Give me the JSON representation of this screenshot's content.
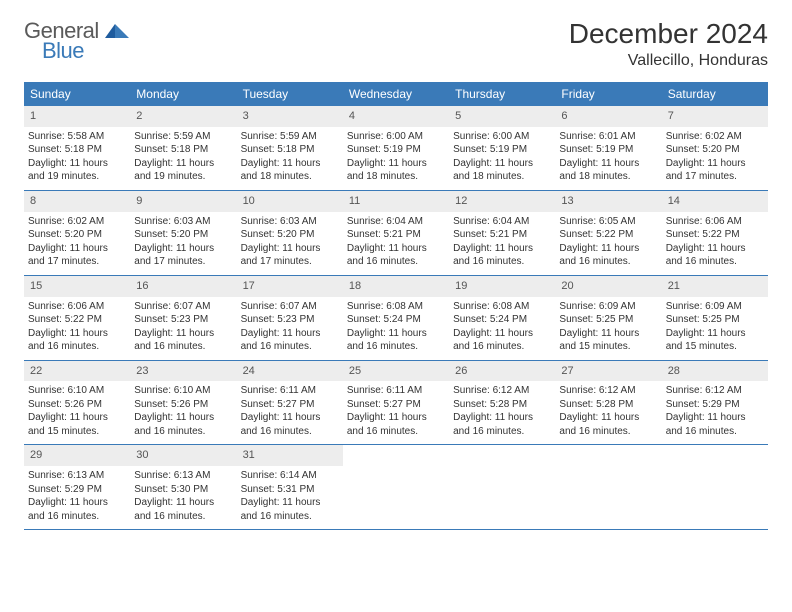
{
  "logo": {
    "general": "General",
    "blue": "Blue"
  },
  "header": {
    "month": "December 2024",
    "location": "Vallecillo, Honduras"
  },
  "colors": {
    "header_bar": "#3a7ab8",
    "day_number_bg": "#ededed",
    "week_border": "#3a7ab8",
    "text": "#333333",
    "logo_gray": "#5a5a5a",
    "logo_blue": "#3a7ab8",
    "background": "#ffffff"
  },
  "weekdays": [
    "Sunday",
    "Monday",
    "Tuesday",
    "Wednesday",
    "Thursday",
    "Friday",
    "Saturday"
  ],
  "days": [
    {
      "n": "1",
      "sr": "Sunrise: 5:58 AM",
      "ss": "Sunset: 5:18 PM",
      "d1": "Daylight: 11 hours",
      "d2": "and 19 minutes."
    },
    {
      "n": "2",
      "sr": "Sunrise: 5:59 AM",
      "ss": "Sunset: 5:18 PM",
      "d1": "Daylight: 11 hours",
      "d2": "and 19 minutes."
    },
    {
      "n": "3",
      "sr": "Sunrise: 5:59 AM",
      "ss": "Sunset: 5:18 PM",
      "d1": "Daylight: 11 hours",
      "d2": "and 18 minutes."
    },
    {
      "n": "4",
      "sr": "Sunrise: 6:00 AM",
      "ss": "Sunset: 5:19 PM",
      "d1": "Daylight: 11 hours",
      "d2": "and 18 minutes."
    },
    {
      "n": "5",
      "sr": "Sunrise: 6:00 AM",
      "ss": "Sunset: 5:19 PM",
      "d1": "Daylight: 11 hours",
      "d2": "and 18 minutes."
    },
    {
      "n": "6",
      "sr": "Sunrise: 6:01 AM",
      "ss": "Sunset: 5:19 PM",
      "d1": "Daylight: 11 hours",
      "d2": "and 18 minutes."
    },
    {
      "n": "7",
      "sr": "Sunrise: 6:02 AM",
      "ss": "Sunset: 5:20 PM",
      "d1": "Daylight: 11 hours",
      "d2": "and 17 minutes."
    },
    {
      "n": "8",
      "sr": "Sunrise: 6:02 AM",
      "ss": "Sunset: 5:20 PM",
      "d1": "Daylight: 11 hours",
      "d2": "and 17 minutes."
    },
    {
      "n": "9",
      "sr": "Sunrise: 6:03 AM",
      "ss": "Sunset: 5:20 PM",
      "d1": "Daylight: 11 hours",
      "d2": "and 17 minutes."
    },
    {
      "n": "10",
      "sr": "Sunrise: 6:03 AM",
      "ss": "Sunset: 5:20 PM",
      "d1": "Daylight: 11 hours",
      "d2": "and 17 minutes."
    },
    {
      "n": "11",
      "sr": "Sunrise: 6:04 AM",
      "ss": "Sunset: 5:21 PM",
      "d1": "Daylight: 11 hours",
      "d2": "and 16 minutes."
    },
    {
      "n": "12",
      "sr": "Sunrise: 6:04 AM",
      "ss": "Sunset: 5:21 PM",
      "d1": "Daylight: 11 hours",
      "d2": "and 16 minutes."
    },
    {
      "n": "13",
      "sr": "Sunrise: 6:05 AM",
      "ss": "Sunset: 5:22 PM",
      "d1": "Daylight: 11 hours",
      "d2": "and 16 minutes."
    },
    {
      "n": "14",
      "sr": "Sunrise: 6:06 AM",
      "ss": "Sunset: 5:22 PM",
      "d1": "Daylight: 11 hours",
      "d2": "and 16 minutes."
    },
    {
      "n": "15",
      "sr": "Sunrise: 6:06 AM",
      "ss": "Sunset: 5:22 PM",
      "d1": "Daylight: 11 hours",
      "d2": "and 16 minutes."
    },
    {
      "n": "16",
      "sr": "Sunrise: 6:07 AM",
      "ss": "Sunset: 5:23 PM",
      "d1": "Daylight: 11 hours",
      "d2": "and 16 minutes."
    },
    {
      "n": "17",
      "sr": "Sunrise: 6:07 AM",
      "ss": "Sunset: 5:23 PM",
      "d1": "Daylight: 11 hours",
      "d2": "and 16 minutes."
    },
    {
      "n": "18",
      "sr": "Sunrise: 6:08 AM",
      "ss": "Sunset: 5:24 PM",
      "d1": "Daylight: 11 hours",
      "d2": "and 16 minutes."
    },
    {
      "n": "19",
      "sr": "Sunrise: 6:08 AM",
      "ss": "Sunset: 5:24 PM",
      "d1": "Daylight: 11 hours",
      "d2": "and 16 minutes."
    },
    {
      "n": "20",
      "sr": "Sunrise: 6:09 AM",
      "ss": "Sunset: 5:25 PM",
      "d1": "Daylight: 11 hours",
      "d2": "and 15 minutes."
    },
    {
      "n": "21",
      "sr": "Sunrise: 6:09 AM",
      "ss": "Sunset: 5:25 PM",
      "d1": "Daylight: 11 hours",
      "d2": "and 15 minutes."
    },
    {
      "n": "22",
      "sr": "Sunrise: 6:10 AM",
      "ss": "Sunset: 5:26 PM",
      "d1": "Daylight: 11 hours",
      "d2": "and 15 minutes."
    },
    {
      "n": "23",
      "sr": "Sunrise: 6:10 AM",
      "ss": "Sunset: 5:26 PM",
      "d1": "Daylight: 11 hours",
      "d2": "and 16 minutes."
    },
    {
      "n": "24",
      "sr": "Sunrise: 6:11 AM",
      "ss": "Sunset: 5:27 PM",
      "d1": "Daylight: 11 hours",
      "d2": "and 16 minutes."
    },
    {
      "n": "25",
      "sr": "Sunrise: 6:11 AM",
      "ss": "Sunset: 5:27 PM",
      "d1": "Daylight: 11 hours",
      "d2": "and 16 minutes."
    },
    {
      "n": "26",
      "sr": "Sunrise: 6:12 AM",
      "ss": "Sunset: 5:28 PM",
      "d1": "Daylight: 11 hours",
      "d2": "and 16 minutes."
    },
    {
      "n": "27",
      "sr": "Sunrise: 6:12 AM",
      "ss": "Sunset: 5:28 PM",
      "d1": "Daylight: 11 hours",
      "d2": "and 16 minutes."
    },
    {
      "n": "28",
      "sr": "Sunrise: 6:12 AM",
      "ss": "Sunset: 5:29 PM",
      "d1": "Daylight: 11 hours",
      "d2": "and 16 minutes."
    },
    {
      "n": "29",
      "sr": "Sunrise: 6:13 AM",
      "ss": "Sunset: 5:29 PM",
      "d1": "Daylight: 11 hours",
      "d2": "and 16 minutes."
    },
    {
      "n": "30",
      "sr": "Sunrise: 6:13 AM",
      "ss": "Sunset: 5:30 PM",
      "d1": "Daylight: 11 hours",
      "d2": "and 16 minutes."
    },
    {
      "n": "31",
      "sr": "Sunrise: 6:14 AM",
      "ss": "Sunset: 5:31 PM",
      "d1": "Daylight: 11 hours",
      "d2": "and 16 minutes."
    }
  ]
}
